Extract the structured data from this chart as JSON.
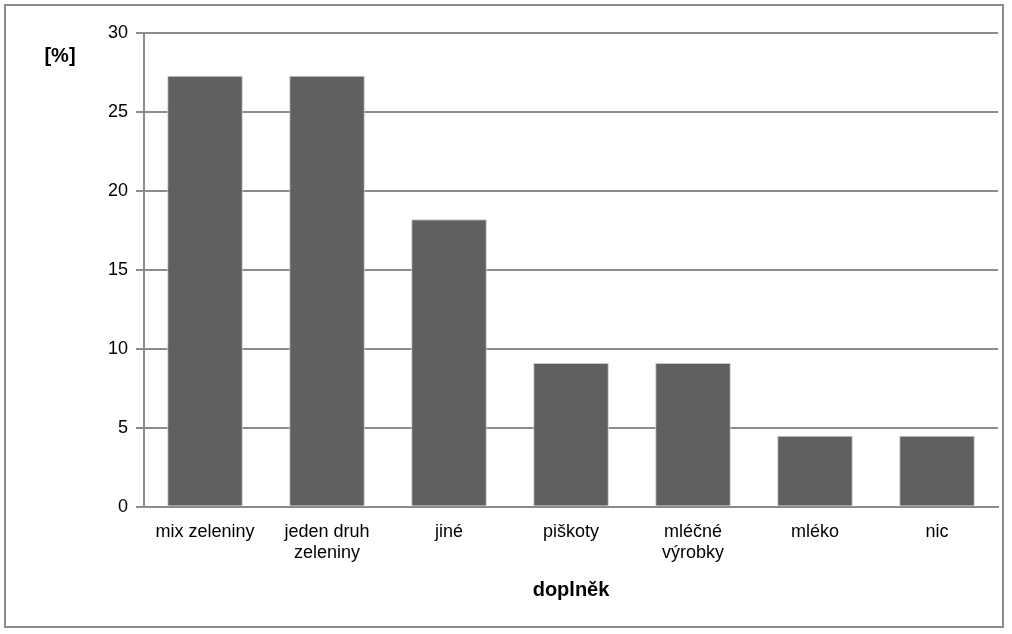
{
  "chart_data": {
    "type": "bar",
    "xlabel": "doplněk",
    "ylabel": "[%]",
    "categories": [
      "mix zeleniny",
      "jeden druh zeleniny",
      "jiné",
      "piškoty",
      "mléčné výrobky",
      "mléko",
      "nic"
    ],
    "values": [
      27.3,
      27.3,
      18.2,
      9.1,
      9.1,
      4.5,
      4.5
    ],
    "color": "#606060",
    "ylim": [
      0,
      30
    ],
    "yticks": [
      0,
      5,
      10,
      15,
      20,
      25,
      30
    ],
    "grid": "y",
    "legend": false
  }
}
